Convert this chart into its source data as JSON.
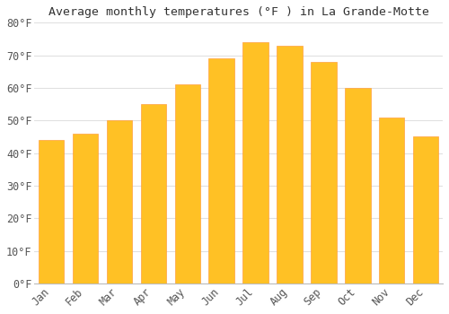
{
  "title": "Average monthly temperatures (°F ) in La Grande-Motte",
  "months": [
    "Jan",
    "Feb",
    "Mar",
    "Apr",
    "May",
    "Jun",
    "Jul",
    "Aug",
    "Sep",
    "Oct",
    "Nov",
    "Dec"
  ],
  "values": [
    44,
    46,
    50,
    55,
    61,
    69,
    74,
    73,
    68,
    60,
    51,
    45
  ],
  "bar_color_face": "#FFC125",
  "bar_color_edge": "#FFA040",
  "background_color": "#FFFFFF",
  "grid_color": "#E0E0E0",
  "ylim": [
    0,
    80
  ],
  "yticks": [
    0,
    10,
    20,
    30,
    40,
    50,
    60,
    70,
    80
  ],
  "ytick_labels": [
    "0°F",
    "10°F",
    "20°F",
    "30°F",
    "40°F",
    "50°F",
    "60°F",
    "70°F",
    "80°F"
  ],
  "title_fontsize": 9.5,
  "tick_fontsize": 8.5,
  "font_family": "monospace",
  "tick_color": "#555555"
}
